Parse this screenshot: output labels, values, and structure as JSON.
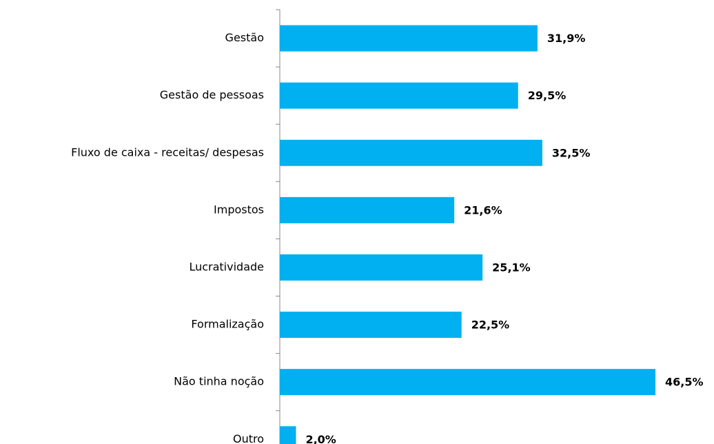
{
  "chart_data": {
    "type": "bar",
    "orientation": "horizontal",
    "categories": [
      "Gestão",
      "Gestão de pessoas",
      "Fluxo de caixa - receitas/ despesas",
      "Impostos",
      "Lucratividade",
      "Formalização",
      "Não tinha noção",
      "Outro"
    ],
    "values": [
      31.9,
      29.5,
      32.5,
      21.6,
      25.1,
      22.5,
      46.5,
      2.0
    ],
    "value_labels": [
      "31,9%",
      "29,5%",
      "32,5%",
      "21,6%",
      "25,1%",
      "22,5%",
      "46,5%",
      "2,0%"
    ],
    "color": "#00b0f0"
  }
}
